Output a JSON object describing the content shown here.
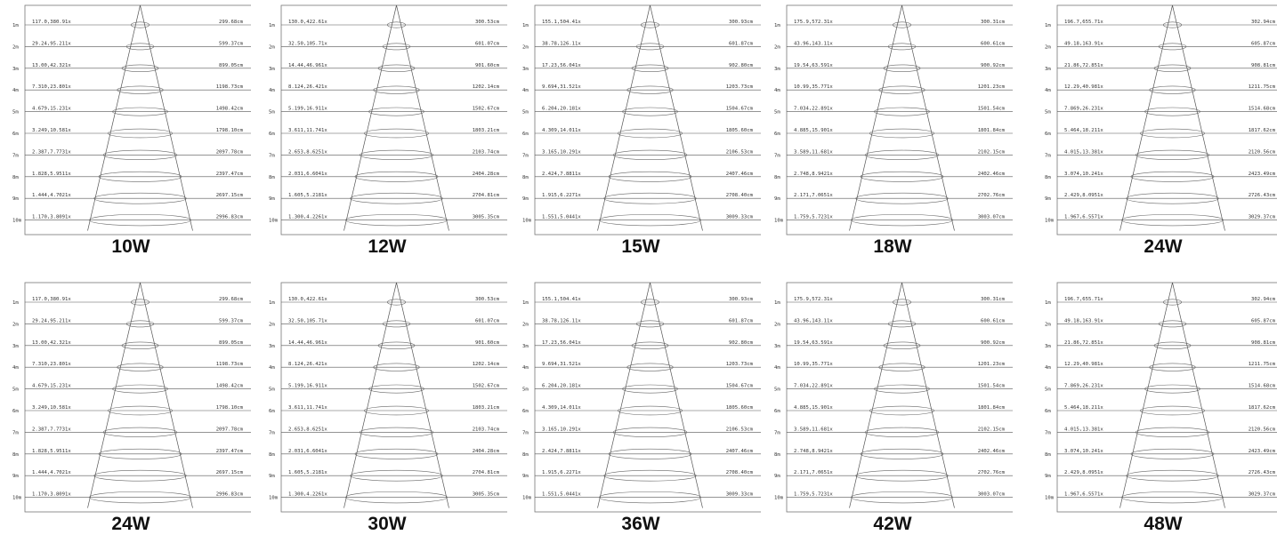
{
  "rows": [
    "1m",
    "2m",
    "3m",
    "4m",
    "5m",
    "6m",
    "7m",
    "8m",
    "9m",
    "10m"
  ],
  "beam_sets": {
    "A": {
      "lux": [
        "117.0,380.91x",
        "29.24,95.211x",
        "13.00,42.321x",
        "7.310,23.801x",
        "4.679,15.231x",
        "3.249,10.581x",
        "2.387,7.7731x",
        "1.828,5.9511x",
        "1.444,4.7021x",
        "1.170,3.8091x"
      ],
      "diameter": [
        "299.68cm",
        "599.37cm",
        "899.05cm",
        "1198.73cm",
        "1498.42cm",
        "1798.10cm",
        "2097.78cm",
        "2397.47cm",
        "2697.15cm",
        "2996.83cm"
      ]
    },
    "B": {
      "lux": [
        "130.0,422.61x",
        "32.50,105.71x",
        "14.44,46.961x",
        "8.124,26.421x",
        "5.199,16.911x",
        "3.611,11.741x",
        "2.653,8.6251x",
        "2.031,6.6041x",
        "1.605,5.2181x",
        "1.300,4.2261x"
      ],
      "diameter": [
        "300.53cm",
        "601.07cm",
        "901.60cm",
        "1202.14cm",
        "1502.67cm",
        "1803.21cm",
        "2103.74cm",
        "2404.28cm",
        "2704.81cm",
        "3005.35cm"
      ]
    },
    "C": {
      "lux": [
        "155.1,504.41x",
        "38.78,126.11x",
        "17.23,56.041x",
        "9.694,31.521x",
        "6.204,20.181x",
        "4.309,14.011x",
        "3.165,10.291x",
        "2.424,7.8811x",
        "1.915,6.2271x",
        "1.551,5.0441x"
      ],
      "diameter": [
        "300.93cm",
        "601.87cm",
        "902.80cm",
        "1203.73cm",
        "1504.67cm",
        "1805.60cm",
        "2106.53cm",
        "2407.46cm",
        "2708.40cm",
        "3009.33cm"
      ]
    },
    "D": {
      "lux": [
        "175.9,572.31x",
        "43.96,143.11x",
        "19.54,63.591x",
        "10.99,35.771x",
        "7.034,22.891x",
        "4.885,15.901x",
        "3.589,11.681x",
        "2.748,8.9421x",
        "2.171,7.0651x",
        "1.759,5.7231x"
      ],
      "diameter": [
        "300.31cm",
        "600.61cm",
        "900.92cm",
        "1201.23cm",
        "1501.54cm",
        "1801.84cm",
        "2102.15cm",
        "2402.46cm",
        "2702.76cm",
        "3003.07cm"
      ]
    },
    "E": {
      "lux": [
        "196.7,655.71x",
        "49.18,163.91x",
        "21.86,72.851x",
        "12.29,40.981x",
        "7.869,26.231x",
        "5.464,18.211x",
        "4.015,13.381x",
        "3.074,10.241x",
        "2.429,8.0951x",
        "1.967,6.5571x"
      ],
      "diameter": [
        "302.94cm",
        "605.87cm",
        "908.81cm",
        "1211.75cm",
        "1514.68cm",
        "1817.62cm",
        "2120.56cm",
        "2423.49cm",
        "2726.43cm",
        "3029.37cm"
      ]
    }
  },
  "panels": [
    {
      "wattage": "10W",
      "set": "A"
    },
    {
      "wattage": "12W",
      "set": "B"
    },
    {
      "wattage": "15W",
      "set": "C"
    },
    {
      "wattage": "18W",
      "set": "D"
    },
    {
      "wattage": "24W",
      "set": "E"
    },
    {
      "wattage": "24W",
      "set": "A"
    },
    {
      "wattage": "30W",
      "set": "B"
    },
    {
      "wattage": "36W",
      "set": "C"
    },
    {
      "wattage": "42W",
      "set": "D"
    },
    {
      "wattage": "48W",
      "set": "E"
    }
  ]
}
